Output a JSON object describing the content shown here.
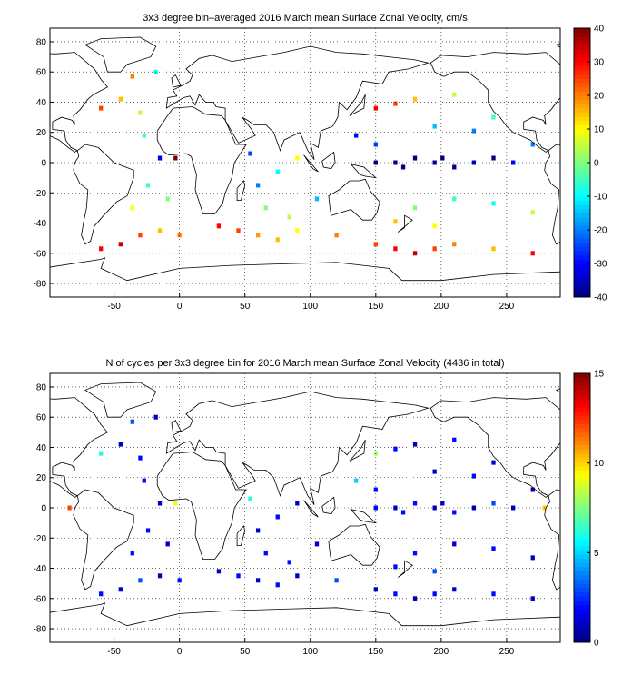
{
  "chart_data": [
    {
      "type": "heatmap",
      "title": "3x3 degree bin–averaged 2016 March mean Surface Zonal Velocity, cm/s",
      "xlim": [
        -99,
        291
      ],
      "ylim": [
        -89,
        89
      ],
      "xticks": [
        -50,
        0,
        50,
        100,
        150,
        200,
        250
      ],
      "yticks": [
        -80,
        -60,
        -40,
        -20,
        0,
        20,
        40,
        60,
        80
      ],
      "clim": [
        -40,
        40
      ],
      "cticks": [
        -40,
        -30,
        -20,
        -10,
        0,
        10,
        20,
        30,
        40
      ],
      "colormap": "jet",
      "grid": true,
      "cells": [
        [
          150,
          0,
          -40
        ],
        [
          165,
          0,
          -40
        ],
        [
          180,
          3,
          -40
        ],
        [
          195,
          0,
          -38
        ],
        [
          210,
          -3,
          -40
        ],
        [
          225,
          0,
          -35
        ],
        [
          240,
          3,
          -40
        ],
        [
          255,
          0,
          -30
        ],
        [
          171,
          -3,
          -40
        ],
        [
          201,
          3,
          -40
        ],
        [
          -60,
          -57,
          30
        ],
        [
          -45,
          -54,
          35
        ],
        [
          -30,
          -48,
          25
        ],
        [
          -15,
          -45,
          15
        ],
        [
          0,
          -48,
          20
        ],
        [
          30,
          -42,
          30
        ],
        [
          45,
          -45,
          25
        ],
        [
          60,
          -48,
          18
        ],
        [
          75,
          -51,
          15
        ],
        [
          90,
          -45,
          10
        ],
        [
          120,
          -48,
          20
        ],
        [
          150,
          -54,
          25
        ],
        [
          165,
          -57,
          30
        ],
        [
          180,
          -60,
          35
        ],
        [
          195,
          -57,
          25
        ],
        [
          210,
          -54,
          20
        ],
        [
          240,
          -57,
          15
        ],
        [
          270,
          -60,
          30
        ],
        [
          -30,
          33,
          5
        ],
        [
          -45,
          42,
          15
        ],
        [
          -36,
          57,
          20
        ],
        [
          -18,
          60,
          -10
        ],
        [
          -60,
          36,
          25
        ],
        [
          -27,
          18,
          -5
        ],
        [
          -15,
          3,
          -30
        ],
        [
          -3,
          3,
          40
        ],
        [
          -24,
          -15,
          -5
        ],
        [
          -9,
          -24,
          0
        ],
        [
          -36,
          -30,
          10
        ],
        [
          60,
          -15,
          -20
        ],
        [
          75,
          -6,
          -10
        ],
        [
          90,
          3,
          10
        ],
        [
          54,
          6,
          -25
        ],
        [
          66,
          -30,
          0
        ],
        [
          105,
          -24,
          -15
        ],
        [
          84,
          -36,
          5
        ],
        [
          150,
          36,
          30
        ],
        [
          165,
          39,
          25
        ],
        [
          180,
          42,
          15
        ],
        [
          210,
          45,
          5
        ],
        [
          195,
          24,
          -15
        ],
        [
          225,
          21,
          -20
        ],
        [
          240,
          30,
          -5
        ],
        [
          135,
          18,
          -30
        ],
        [
          150,
          12,
          -25
        ],
        [
          270,
          12,
          -20
        ],
        [
          180,
          -30,
          0
        ],
        [
          210,
          -24,
          -5
        ],
        [
          240,
          -27,
          -10
        ],
        [
          270,
          -33,
          5
        ],
        [
          195,
          -42,
          10
        ],
        [
          165,
          -39,
          15
        ]
      ]
    },
    {
      "type": "heatmap",
      "title": "N of cycles per 3x3 degree bin for 2016 March mean Surface Zonal Velocity (4436 in total)",
      "xlim": [
        -99,
        291
      ],
      "ylim": [
        -89,
        89
      ],
      "xticks": [
        -50,
        0,
        50,
        100,
        150,
        200,
        250
      ],
      "yticks": [
        -80,
        -60,
        -40,
        -20,
        0,
        20,
        40,
        60,
        80
      ],
      "clim": [
        0,
        15
      ],
      "cticks": [
        0,
        5,
        10,
        15
      ],
      "colormap": "jet",
      "grid": true,
      "cells": [
        [
          150,
          0,
          2
        ],
        [
          165,
          0,
          1
        ],
        [
          180,
          3,
          2
        ],
        [
          195,
          0,
          1
        ],
        [
          210,
          -3,
          2
        ],
        [
          225,
          0,
          1
        ],
        [
          240,
          3,
          3
        ],
        [
          255,
          0,
          1
        ],
        [
          171,
          -3,
          2
        ],
        [
          201,
          3,
          1
        ],
        [
          -60,
          -57,
          2
        ],
        [
          -45,
          -54,
          1
        ],
        [
          -30,
          -48,
          3
        ],
        [
          -15,
          -45,
          1
        ],
        [
          0,
          -48,
          2
        ],
        [
          30,
          -42,
          1
        ],
        [
          45,
          -45,
          2
        ],
        [
          60,
          -48,
          1
        ],
        [
          75,
          -51,
          2
        ],
        [
          90,
          -45,
          1
        ],
        [
          120,
          -48,
          3
        ],
        [
          150,
          -54,
          1
        ],
        [
          165,
          -57,
          2
        ],
        [
          180,
          -60,
          1
        ],
        [
          195,
          -57,
          2
        ],
        [
          210,
          -54,
          1
        ],
        [
          240,
          -57,
          2
        ],
        [
          270,
          -60,
          1
        ],
        [
          -30,
          33,
          2
        ],
        [
          -45,
          42,
          1
        ],
        [
          -36,
          57,
          3
        ],
        [
          -18,
          60,
          1
        ],
        [
          -60,
          36,
          6
        ],
        [
          -27,
          18,
          2
        ],
        [
          -15,
          3,
          1
        ],
        [
          -3,
          3,
          9
        ],
        [
          -24,
          -15,
          2
        ],
        [
          -9,
          -24,
          1
        ],
        [
          -36,
          -30,
          2
        ],
        [
          60,
          -15,
          1
        ],
        [
          75,
          -6,
          2
        ],
        [
          90,
          3,
          1
        ],
        [
          54,
          6,
          6
        ],
        [
          66,
          -30,
          2
        ],
        [
          105,
          -24,
          1
        ],
        [
          84,
          -36,
          2
        ],
        [
          150,
          36,
          8
        ],
        [
          165,
          39,
          2
        ],
        [
          180,
          42,
          1
        ],
        [
          210,
          45,
          2
        ],
        [
          195,
          24,
          1
        ],
        [
          225,
          21,
          2
        ],
        [
          240,
          30,
          1
        ],
        [
          135,
          18,
          5
        ],
        [
          150,
          12,
          2
        ],
        [
          270,
          12,
          1
        ],
        [
          180,
          -30,
          2
        ],
        [
          210,
          -24,
          1
        ],
        [
          240,
          -27,
          2
        ],
        [
          270,
          -33,
          1
        ],
        [
          195,
          -42,
          3
        ],
        [
          165,
          -39,
          2
        ],
        [
          -84,
          0,
          12
        ],
        [
          279,
          0,
          10
        ]
      ]
    }
  ]
}
